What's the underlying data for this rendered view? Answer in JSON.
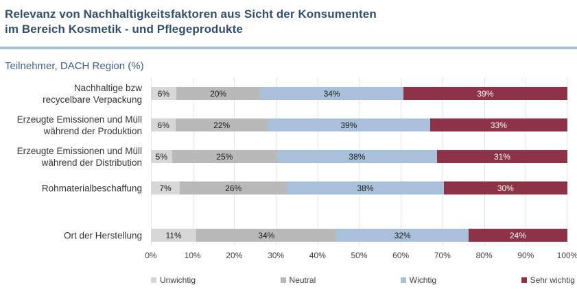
{
  "title": "Relevanz von Nachhaltigkeitsfaktoren aus Sicht der Konsumenten\nim Bereich Kosmetik - und Pflegeprodukte",
  "subtitle": "Teilnehmer, DACH Region (%)",
  "colors": {
    "title_text": "#334f6e",
    "divider": "#a7c0d9",
    "subtitle_text": "#41607f",
    "gridline": "#e4e4e4",
    "category_label_text": "#333333",
    "axis_tick_text": "#3f3f3f",
    "legend_text": "#404040"
  },
  "chart_data": {
    "type": "bar",
    "variant": "horizontal-stacked",
    "title": "Relevanz von Nachhaltigkeitsfaktoren aus Sicht der Konsumenten im Bereich Kosmetik - und Pflegeprodukte",
    "subtitle": "Teilnehmer, DACH Region (%)",
    "categories": [
      "Nachhaltige bzw\nrecycelbare Verpackung",
      "Erzeugte Emissionen und Müll\nwährend der Produktion",
      "Erzeugte Emissionen und Müll\nwährend der Distribution",
      "Rohmaterialbeschaffung",
      "Ort der Herstellung"
    ],
    "series": [
      {
        "name": "Unwichtig",
        "color": "#d7d7d7",
        "label_color": "#1a1a1a",
        "values": [
          6,
          6,
          5,
          7,
          11
        ]
      },
      {
        "name": "Neutral",
        "color": "#b9b9b9",
        "label_color": "#1a1a1a",
        "values": [
          20,
          22,
          25,
          26,
          34
        ]
      },
      {
        "name": "Wichtig",
        "color": "#a9c0da",
        "label_color": "#1a1a1a",
        "values": [
          34,
          39,
          38,
          38,
          32
        ]
      },
      {
        "name": "Sehr wichtig",
        "color": "#8d3247",
        "label_color": "#ffffff",
        "values": [
          39,
          33,
          31,
          30,
          24
        ]
      }
    ],
    "value_suffix": "%",
    "x_axis_ticks": [
      "0%",
      "10%",
      "20%",
      "30%",
      "40%",
      "50%",
      "60%",
      "70%",
      "80%",
      "90%",
      "100%"
    ],
    "xlim": [
      0,
      100
    ],
    "grid": true,
    "legend_position": "bottom"
  }
}
